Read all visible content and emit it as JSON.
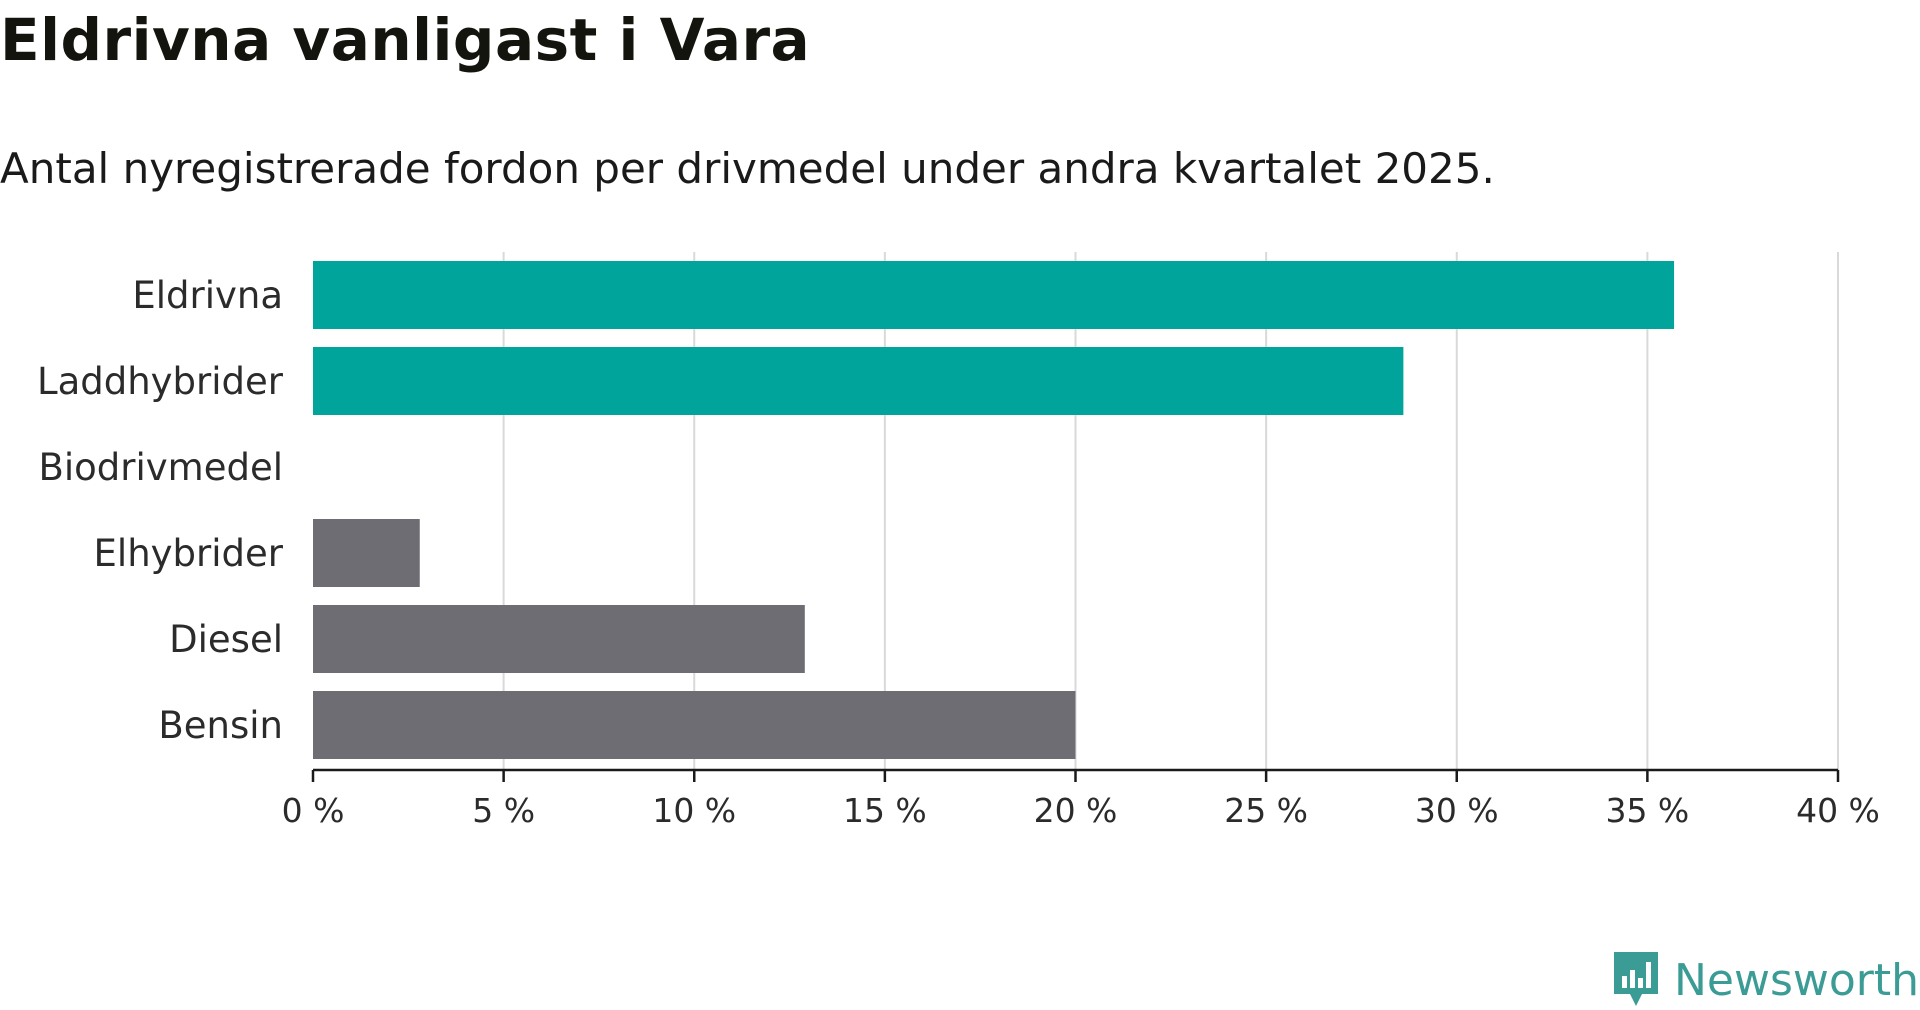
{
  "title": "Eldrivna vanligast i Vara",
  "subtitle": "Antal nyregistrerade fordon per drivmedel under andra kvartalet 2025.",
  "brand": {
    "name": "Newsworthy",
    "icon": "newsworthy-logo-icon",
    "color": "#3a9c95"
  },
  "chart_data": {
    "type": "bar",
    "orientation": "horizontal",
    "categories": [
      "Eldrivna",
      "Laddhybrider",
      "Biodrivmedel",
      "Elhybrider",
      "Diesel",
      "Bensin"
    ],
    "values": [
      35.7,
      28.6,
      0,
      2.8,
      12.9,
      20.0
    ],
    "colors": [
      "#00a49a",
      "#00a49a",
      "#00a49a",
      "#6e6d73",
      "#6e6d73",
      "#6e6d73"
    ],
    "xlim": [
      0,
      40
    ],
    "xticks": [
      0,
      5,
      10,
      15,
      20,
      25,
      30,
      35,
      40
    ],
    "xtick_labels": [
      "0 %",
      "5 %",
      "10 %",
      "15 %",
      "20 %",
      "25 %",
      "30 %",
      "35 %",
      "40 %"
    ],
    "xlabel": "",
    "ylabel": "",
    "grid": true
  }
}
